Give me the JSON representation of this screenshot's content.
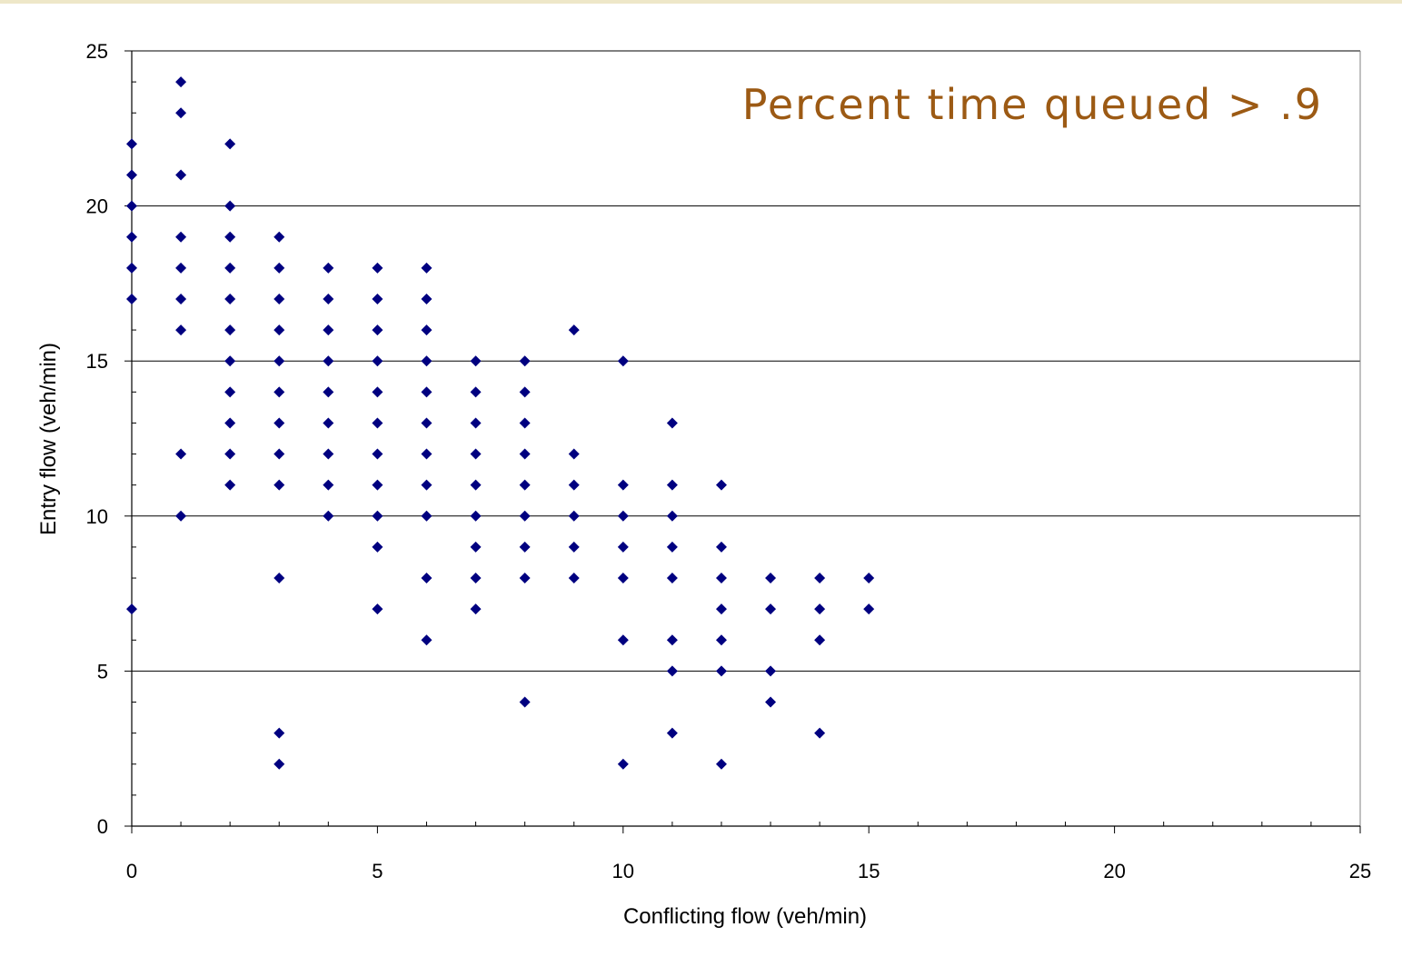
{
  "chart_data": {
    "type": "scatter",
    "title": "Percent time queued > .9",
    "xlabel": "Conflicting flow (veh/min)",
    "ylabel": "Entry flow (veh/min)",
    "xlim": [
      0,
      25
    ],
    "ylim": [
      0,
      25
    ],
    "x_ticks": [
      "0",
      "5",
      "10",
      "15",
      "20",
      "25"
    ],
    "y_ticks": [
      "0",
      "5",
      "10",
      "15",
      "20",
      "25"
    ],
    "grid": "horizontal major",
    "legend": "none",
    "marker": "diamond",
    "colors": {
      "marker": "#000080",
      "title": "#9c5a14",
      "grid": "#000000",
      "top_rule": "#eee7c8"
    },
    "points": [
      [
        0,
        22
      ],
      [
        0,
        21
      ],
      [
        0,
        20
      ],
      [
        0,
        19
      ],
      [
        0,
        18
      ],
      [
        0,
        17
      ],
      [
        0,
        7
      ],
      [
        1,
        24
      ],
      [
        1,
        23
      ],
      [
        1,
        21
      ],
      [
        1,
        19
      ],
      [
        1,
        18
      ],
      [
        1,
        17
      ],
      [
        1,
        16
      ],
      [
        1,
        12
      ],
      [
        1,
        10
      ],
      [
        2,
        22
      ],
      [
        2,
        20
      ],
      [
        2,
        19
      ],
      [
        2,
        18
      ],
      [
        2,
        17
      ],
      [
        2,
        16
      ],
      [
        2,
        15
      ],
      [
        2,
        14
      ],
      [
        2,
        13
      ],
      [
        2,
        12
      ],
      [
        2,
        11
      ],
      [
        3,
        19
      ],
      [
        3,
        18
      ],
      [
        3,
        17
      ],
      [
        3,
        16
      ],
      [
        3,
        15
      ],
      [
        3,
        14
      ],
      [
        3,
        13
      ],
      [
        3,
        12
      ],
      [
        3,
        11
      ],
      [
        3,
        8
      ],
      [
        3,
        3
      ],
      [
        3,
        2
      ],
      [
        4,
        18
      ],
      [
        4,
        17
      ],
      [
        4,
        16
      ],
      [
        4,
        15
      ],
      [
        4,
        14
      ],
      [
        4,
        13
      ],
      [
        4,
        12
      ],
      [
        4,
        11
      ],
      [
        4,
        10
      ],
      [
        5,
        18
      ],
      [
        5,
        17
      ],
      [
        5,
        16
      ],
      [
        5,
        15
      ],
      [
        5,
        14
      ],
      [
        5,
        13
      ],
      [
        5,
        12
      ],
      [
        5,
        11
      ],
      [
        5,
        10
      ],
      [
        5,
        9
      ],
      [
        5,
        7
      ],
      [
        6,
        18
      ],
      [
        6,
        17
      ],
      [
        6,
        16
      ],
      [
        6,
        15
      ],
      [
        6,
        14
      ],
      [
        6,
        13
      ],
      [
        6,
        12
      ],
      [
        6,
        11
      ],
      [
        6,
        10
      ],
      [
        6,
        8
      ],
      [
        6,
        6
      ],
      [
        7,
        15
      ],
      [
        7,
        14
      ],
      [
        7,
        13
      ],
      [
        7,
        12
      ],
      [
        7,
        11
      ],
      [
        7,
        10
      ],
      [
        7,
        9
      ],
      [
        7,
        8
      ],
      [
        7,
        7
      ],
      [
        8,
        15
      ],
      [
        8,
        14
      ],
      [
        8,
        13
      ],
      [
        8,
        12
      ],
      [
        8,
        11
      ],
      [
        8,
        10
      ],
      [
        8,
        9
      ],
      [
        8,
        8
      ],
      [
        8,
        4
      ],
      [
        9,
        16
      ],
      [
        9,
        12
      ],
      [
        9,
        11
      ],
      [
        9,
        10
      ],
      [
        9,
        9
      ],
      [
        9,
        8
      ],
      [
        10,
        15
      ],
      [
        10,
        11
      ],
      [
        10,
        10
      ],
      [
        10,
        9
      ],
      [
        10,
        8
      ],
      [
        10,
        6
      ],
      [
        10,
        2
      ],
      [
        11,
        13
      ],
      [
        11,
        11
      ],
      [
        11,
        10
      ],
      [
        11,
        9
      ],
      [
        11,
        8
      ],
      [
        11,
        6
      ],
      [
        11,
        5
      ],
      [
        11,
        3
      ],
      [
        12,
        11
      ],
      [
        12,
        9
      ],
      [
        12,
        8
      ],
      [
        12,
        7
      ],
      [
        12,
        6
      ],
      [
        12,
        5
      ],
      [
        12,
        2
      ],
      [
        13,
        8
      ],
      [
        13,
        7
      ],
      [
        13,
        5
      ],
      [
        13,
        4
      ],
      [
        14,
        8
      ],
      [
        14,
        7
      ],
      [
        14,
        6
      ],
      [
        14,
        3
      ],
      [
        15,
        8
      ],
      [
        15,
        7
      ]
    ]
  }
}
